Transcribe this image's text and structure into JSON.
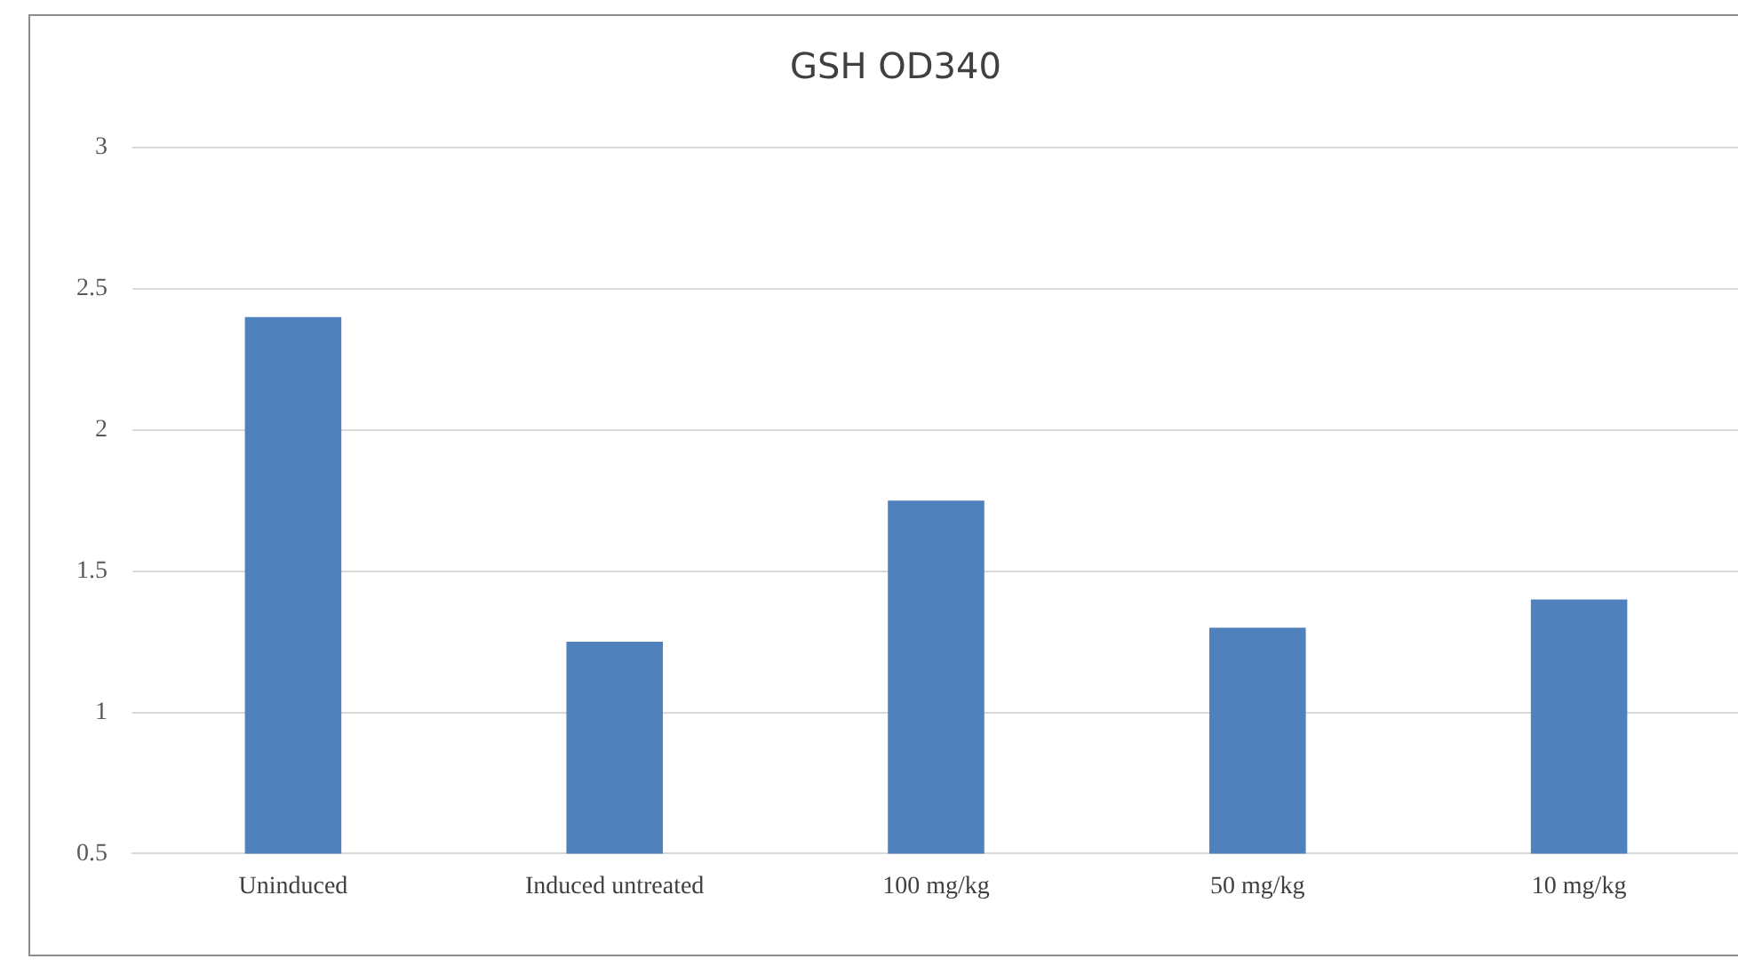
{
  "chart_data": {
    "type": "bar",
    "title": "GSH OD340",
    "categories": [
      "Uninduced",
      "Induced untreated",
      "100 mg/kg",
      "50 mg/kg",
      "10 mg/kg"
    ],
    "values": [
      2.4,
      1.25,
      1.75,
      1.3,
      1.4
    ],
    "color": "#4f81bd",
    "ylim": [
      0.5,
      3
    ],
    "yticks": [
      0.5,
      1,
      1.5,
      2,
      2.5,
      3
    ],
    "grid": "y",
    "legend": false
  }
}
